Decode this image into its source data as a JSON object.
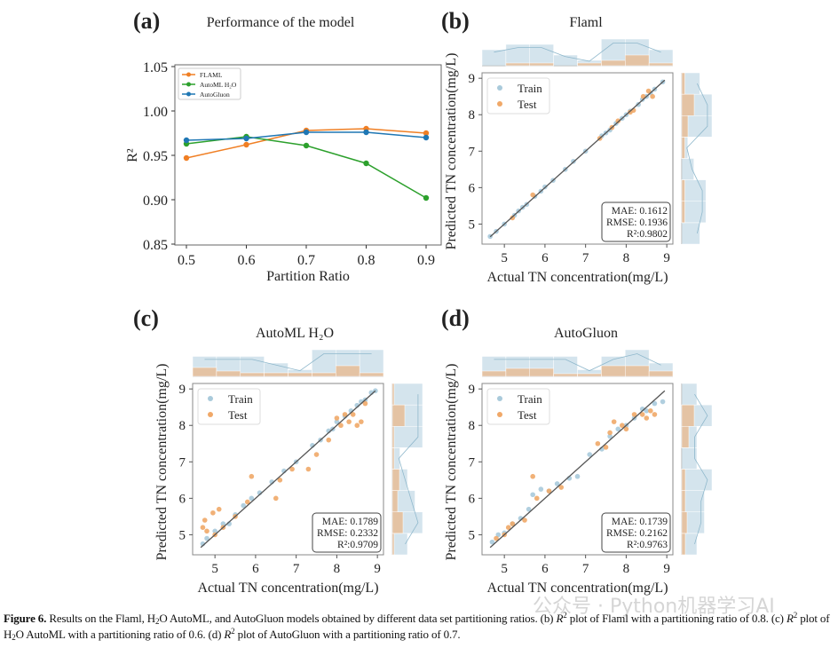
{
  "panels": {
    "a": "(a)",
    "b": "(b)",
    "c": "(c)",
    "d": "(d)"
  },
  "chart_data": [
    {
      "type": "line",
      "title": "Performance of the model",
      "xlabel": "Partition Ratio",
      "ylabel": "R²",
      "x": [
        0.5,
        0.6,
        0.7,
        0.8,
        0.9
      ],
      "xlim": [
        0.48,
        0.92
      ],
      "ylim": [
        0.85,
        1.05
      ],
      "xticks": [
        "0.5",
        "0.6",
        "0.7",
        "0.8",
        "0.9"
      ],
      "yticks": [
        "0.85",
        "0.90",
        "0.95",
        "1.00",
        "1.05"
      ],
      "legend": "top-left",
      "grid": false,
      "series": [
        {
          "name": "FLAML",
          "color": "#f07f24",
          "values": [
            0.947,
            0.962,
            0.978,
            0.98,
            0.975
          ]
        },
        {
          "name": "AutoML H₂O",
          "color": "#2ca02c",
          "values": [
            0.963,
            0.971,
            0.961,
            0.941,
            0.902
          ]
        },
        {
          "name": "AutoGluon",
          "color": "#1f77b4",
          "values": [
            0.967,
            0.969,
            0.976,
            0.976,
            0.97
          ]
        }
      ]
    },
    {
      "type": "scatter",
      "title": "Flaml",
      "xlabel": "Actual TN concentration(mg/L)",
      "ylabel": "Predicted TN concentration(mg/L)",
      "xlim": [
        4.45,
        9.15
      ],
      "ylim": [
        4.45,
        9.15
      ],
      "ticks": [
        "5",
        "6",
        "7",
        "8",
        "9"
      ],
      "legend": "top-left",
      "stats": [
        "MAE: 0.1612",
        "RMSE: 0.1936",
        "R²:0.9802"
      ],
      "series": [
        {
          "name": "Train",
          "color": "#a9cadb",
          "points": [
            [
              4.65,
              4.66
            ],
            [
              4.8,
              4.8
            ],
            [
              5.0,
              5.0
            ],
            [
              5.25,
              5.24
            ],
            [
              5.35,
              5.36
            ],
            [
              5.45,
              5.46
            ],
            [
              5.55,
              5.54
            ],
            [
              5.75,
              5.76
            ],
            [
              5.9,
              5.9
            ],
            [
              6.0,
              6.02
            ],
            [
              6.2,
              6.2
            ],
            [
              6.5,
              6.5
            ],
            [
              6.7,
              6.72
            ],
            [
              7.0,
              7.0
            ],
            [
              7.4,
              7.42
            ],
            [
              7.5,
              7.5
            ],
            [
              7.6,
              7.58
            ],
            [
              7.75,
              7.76
            ],
            [
              7.9,
              7.9
            ],
            [
              8.0,
              8.0
            ],
            [
              8.1,
              8.1
            ],
            [
              8.3,
              8.28
            ],
            [
              8.4,
              8.42
            ],
            [
              8.5,
              8.5
            ],
            [
              8.6,
              8.6
            ],
            [
              8.7,
              8.7
            ],
            [
              8.9,
              8.9
            ]
          ]
        },
        {
          "name": "Test",
          "color": "#f0a868",
          "points": [
            [
              5.2,
              5.17
            ],
            [
              5.7,
              5.8
            ],
            [
              7.35,
              7.35
            ],
            [
              7.65,
              7.65
            ],
            [
              7.8,
              7.83
            ],
            [
              8.1,
              8.07
            ],
            [
              8.18,
              8.12
            ],
            [
              8.42,
              8.5
            ],
            [
              8.55,
              8.65
            ],
            [
              8.65,
              8.5
            ]
          ]
        }
      ]
    },
    {
      "type": "scatter",
      "title": "AutoML H₂O",
      "xlabel": "Actual TN concentration(mg/L)",
      "ylabel": "Predicted TN concentration(mg/L)",
      "xlim": [
        4.45,
        9.15
      ],
      "ylim": [
        4.45,
        9.15
      ],
      "ticks": [
        "5",
        "6",
        "7",
        "8",
        "9"
      ],
      "legend": "top-left",
      "stats": [
        "MAE: 0.1789",
        "RMSE: 0.2332",
        "R²:0.9709"
      ],
      "series": [
        {
          "name": "Train",
          "color": "#a9cadb",
          "points": [
            [
              4.7,
              4.75
            ],
            [
              4.8,
              4.9
            ],
            [
              5.0,
              5.1
            ],
            [
              5.2,
              5.3
            ],
            [
              5.35,
              5.3
            ],
            [
              5.5,
              5.55
            ],
            [
              5.7,
              5.8
            ],
            [
              5.9,
              6.0
            ],
            [
              6.1,
              6.15
            ],
            [
              6.4,
              6.45
            ],
            [
              6.7,
              6.75
            ],
            [
              7.0,
              7.0
            ],
            [
              7.4,
              7.45
            ],
            [
              7.6,
              7.6
            ],
            [
              7.8,
              7.85
            ],
            [
              7.9,
              7.9
            ],
            [
              8.0,
              8.1
            ],
            [
              8.2,
              8.25
            ],
            [
              8.35,
              8.4
            ],
            [
              8.5,
              8.55
            ],
            [
              8.6,
              8.65
            ],
            [
              8.7,
              8.7
            ],
            [
              8.85,
              8.9
            ],
            [
              8.95,
              8.95
            ]
          ]
        },
        {
          "name": "Test",
          "color": "#f0a868",
          "points": [
            [
              4.7,
              5.2
            ],
            [
              4.8,
              5.1
            ],
            [
              4.75,
              5.4
            ],
            [
              4.95,
              5.6
            ],
            [
              5.1,
              5.7
            ],
            [
              5.0,
              5.0
            ],
            [
              5.2,
              5.2
            ],
            [
              5.5,
              5.5
            ],
            [
              5.9,
              6.6
            ],
            [
              5.8,
              5.9
            ],
            [
              6.5,
              6.0
            ],
            [
              6.6,
              6.5
            ],
            [
              6.9,
              6.8
            ],
            [
              7.3,
              6.8
            ],
            [
              7.5,
              7.2
            ],
            [
              7.8,
              7.6
            ],
            [
              8.0,
              8.2
            ],
            [
              8.1,
              8.0
            ],
            [
              8.2,
              8.3
            ],
            [
              8.3,
              8.1
            ],
            [
              8.4,
              8.3
            ],
            [
              8.5,
              8.0
            ],
            [
              8.6,
              8.1
            ],
            [
              8.7,
              8.6
            ]
          ]
        }
      ]
    },
    {
      "type": "scatter",
      "title": "AutoGluon",
      "xlabel": "Actual TN concentration(mg/L)",
      "ylabel": "Predicted TN concentration(mg/L)",
      "xlim": [
        4.45,
        9.15
      ],
      "ylim": [
        4.45,
        9.15
      ],
      "ticks": [
        "5",
        "6",
        "7",
        "8",
        "9"
      ],
      "legend": "top-left",
      "stats": [
        "MAE: 0.1739",
        "RMSE: 0.2162",
        "R²:0.9763"
      ],
      "series": [
        {
          "name": "Train",
          "color": "#a9cadb",
          "points": [
            [
              4.7,
              4.8
            ],
            [
              4.85,
              5.0
            ],
            [
              5.0,
              5.05
            ],
            [
              5.2,
              5.3
            ],
            [
              5.4,
              5.45
            ],
            [
              5.6,
              5.7
            ],
            [
              5.7,
              6.1
            ],
            [
              5.9,
              6.25
            ],
            [
              6.1,
              6.2
            ],
            [
              6.3,
              6.4
            ],
            [
              6.6,
              6.55
            ],
            [
              6.8,
              6.6
            ],
            [
              7.1,
              7.2
            ],
            [
              7.4,
              7.35
            ],
            [
              7.6,
              7.7
            ],
            [
              7.8,
              7.9
            ],
            [
              8.0,
              8.0
            ],
            [
              8.2,
              8.2
            ],
            [
              8.4,
              8.45
            ],
            [
              8.5,
              8.4
            ],
            [
              8.7,
              8.6
            ],
            [
              8.9,
              8.65
            ]
          ]
        },
        {
          "name": "Test",
          "color": "#f0a868",
          "points": [
            [
              4.8,
              4.9
            ],
            [
              5.0,
              5.0
            ],
            [
              5.1,
              5.2
            ],
            [
              5.2,
              5.3
            ],
            [
              5.5,
              5.4
            ],
            [
              5.7,
              6.6
            ],
            [
              5.8,
              6.0
            ],
            [
              6.1,
              6.2
            ],
            [
              6.4,
              6.3
            ],
            [
              7.3,
              7.5
            ],
            [
              7.5,
              7.4
            ],
            [
              7.6,
              7.8
            ],
            [
              7.7,
              8.1
            ],
            [
              7.9,
              8.0
            ],
            [
              8.0,
              7.9
            ],
            [
              8.2,
              8.3
            ],
            [
              8.4,
              8.3
            ],
            [
              8.5,
              8.2
            ],
            [
              8.6,
              8.4
            ],
            [
              8.7,
              8.3
            ]
          ]
        }
      ]
    }
  ],
  "caption": {
    "fig": "Figure 6.",
    "p1": " Results on the Flaml, H",
    "sub1": "2",
    "p2": "O AutoML, and AutoGluon models obtained by different data set partitioning ratios. (b) ",
    "r1": "R",
    "sup1": "2",
    "p3": " plot of Flaml with a partitioning ratio of 0.8. (c) ",
    "r2": "R",
    "sup2": "2",
    "p4": " plot of H",
    "sub2": "2",
    "p5": "O AutoML with a partitioning ratio of 0.6. (d) ",
    "r3": "R",
    "sup3": "2",
    "p6": " plot of AutoGluon with a partitioning ratio of 0.7."
  },
  "watermark": "公众号 · Python机器学习AI"
}
